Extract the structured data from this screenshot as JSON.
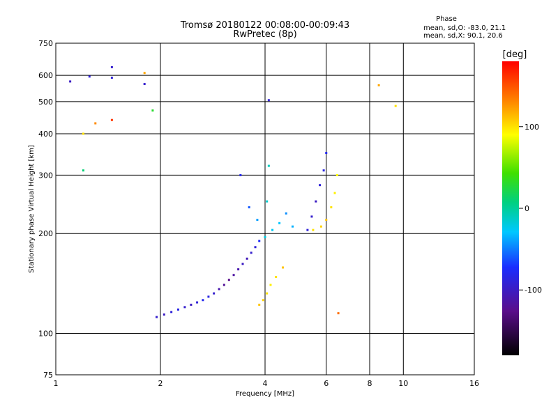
{
  "chart_data": {
    "type": "scatter",
    "title": "Tromsø 20180122 00:08:00-00:09:43",
    "subtitle": "RwPretec (8p)",
    "xlabel": "Frequency [MHz]",
    "ylabel": "Stationary phase Virtual Height [km]",
    "x_scale": "log",
    "y_scale": "log",
    "xlim": [
      1,
      16
    ],
    "ylim": [
      75,
      750
    ],
    "x_ticks": [
      1,
      2,
      4,
      6,
      8,
      10,
      16
    ],
    "x_ticklabels": [
      "1",
      "2",
      "4",
      "6",
      "8",
      "10",
      "16"
    ],
    "y_ticks": [
      75,
      100,
      200,
      300,
      400,
      500,
      600,
      750
    ],
    "y_ticklabels": [
      "75",
      "100",
      "200",
      "300",
      "400",
      "500",
      "600",
      "750"
    ],
    "grid": true,
    "stats": {
      "heading": "Phase",
      "line_o": "mean, sd,O: -83.0, 21.1",
      "line_x": "mean, sd,X: 90.1, 20.6"
    },
    "colorbar": {
      "label": "[deg]",
      "range": [
        -180,
        180
      ],
      "ticks": [
        100,
        0,
        -100
      ],
      "ticklabels": [
        "100",
        "0",
        "-100"
      ]
    },
    "series": [
      {
        "values": [
          [
            1.95,
            112,
            -95
          ],
          [
            2.05,
            114,
            -100
          ],
          [
            2.15,
            116,
            -90
          ],
          [
            2.25,
            118,
            -85
          ],
          [
            2.35,
            120,
            -95
          ],
          [
            2.45,
            122,
            -100
          ],
          [
            2.55,
            124,
            -90
          ],
          [
            2.65,
            126,
            -80
          ],
          [
            2.75,
            129,
            -85
          ],
          [
            2.85,
            132,
            -95
          ],
          [
            2.95,
            136,
            -110
          ],
          [
            3.05,
            140,
            -120
          ],
          [
            3.15,
            145,
            -125
          ],
          [
            3.25,
            150,
            -115
          ],
          [
            3.35,
            156,
            -110
          ],
          [
            3.45,
            162,
            -100
          ],
          [
            3.55,
            168,
            -105
          ],
          [
            3.65,
            175,
            -95
          ],
          [
            3.75,
            182,
            -90
          ],
          [
            3.85,
            190,
            -75
          ]
        ]
      },
      {
        "values": [
          [
            3.4,
            300,
            -80
          ],
          [
            3.6,
            240,
            -60
          ],
          [
            3.8,
            220,
            -40
          ],
          [
            4.0,
            195,
            -20
          ],
          [
            4.05,
            250,
            -15
          ],
          [
            4.1,
            320,
            -10
          ],
          [
            4.2,
            205,
            -25
          ],
          [
            4.4,
            215,
            -30
          ],
          [
            4.6,
            230,
            -45
          ],
          [
            4.8,
            210,
            -35
          ]
        ]
      },
      {
        "values": [
          [
            3.85,
            122,
            110
          ],
          [
            3.95,
            126,
            105
          ],
          [
            4.05,
            132,
            100
          ],
          [
            4.15,
            140,
            95
          ],
          [
            4.3,
            148,
            100
          ],
          [
            4.5,
            158,
            110
          ]
        ]
      },
      {
        "values": [
          [
            5.3,
            205,
            -90
          ],
          [
            5.45,
            225,
            -95
          ],
          [
            5.6,
            250,
            -100
          ],
          [
            5.75,
            280,
            -90
          ],
          [
            5.9,
            310,
            -85
          ],
          [
            6.0,
            350,
            -80
          ]
        ]
      },
      {
        "values": [
          [
            5.5,
            205,
            100
          ],
          [
            5.8,
            210,
            105
          ],
          [
            6.0,
            220,
            110
          ],
          [
            6.2,
            240,
            100
          ],
          [
            6.35,
            265,
            95
          ],
          [
            6.45,
            300,
            90
          ]
        ]
      },
      {
        "values": [
          [
            1.1,
            575,
            -100
          ],
          [
            1.25,
            595,
            -90
          ],
          [
            1.45,
            635,
            -95
          ],
          [
            1.45,
            590,
            -90
          ],
          [
            1.8,
            565,
            -95
          ],
          [
            1.8,
            610,
            120
          ],
          [
            1.2,
            400,
            100
          ],
          [
            1.3,
            430,
            130
          ],
          [
            1.45,
            440,
            160
          ],
          [
            1.9,
            470,
            30
          ],
          [
            1.2,
            310,
            10
          ],
          [
            8.5,
            560,
            120
          ],
          [
            9.5,
            485,
            100
          ],
          [
            6.5,
            115,
            140
          ],
          [
            4.1,
            505,
            -90
          ]
        ]
      }
    ]
  }
}
